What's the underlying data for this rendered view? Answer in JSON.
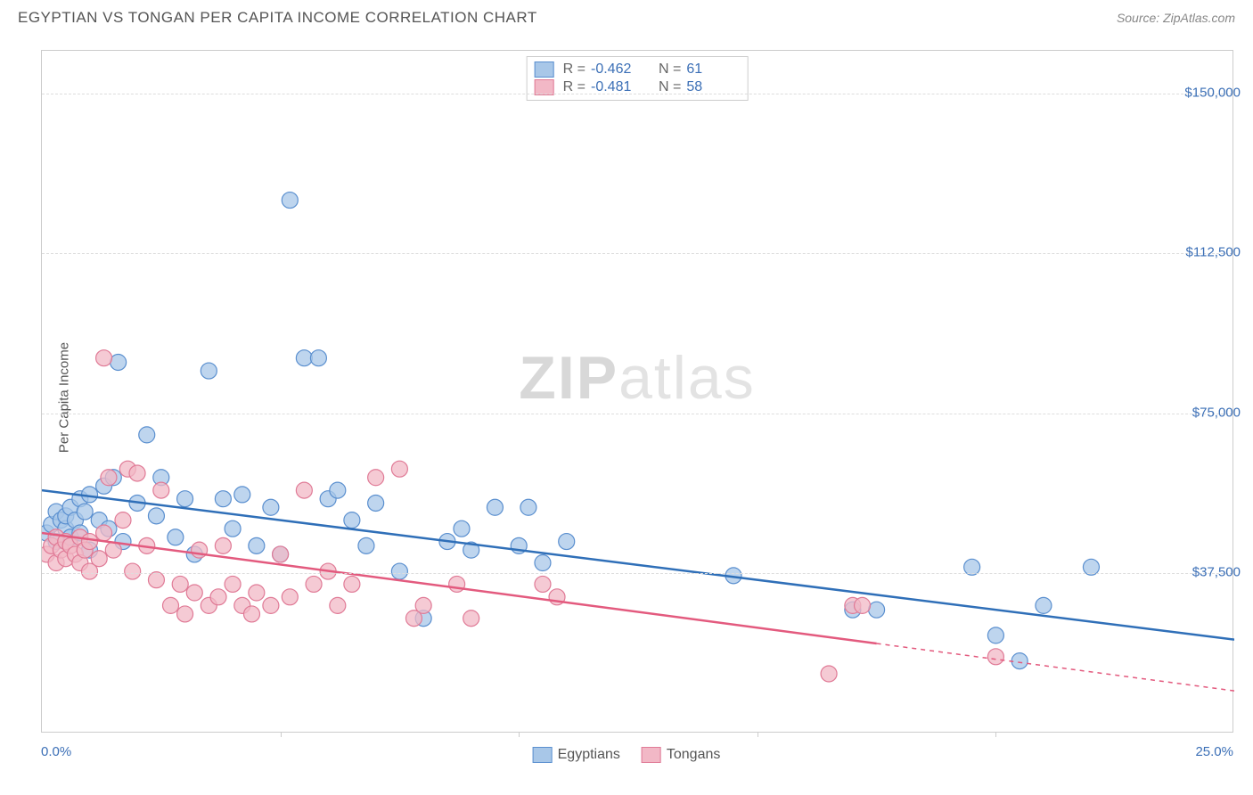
{
  "header": {
    "title": "EGYPTIAN VS TONGAN PER CAPITA INCOME CORRELATION CHART",
    "source_prefix": "Source: ",
    "source_name": "ZipAtlas.com"
  },
  "chart": {
    "type": "scatter",
    "ylabel": "Per Capita Income",
    "background_color": "#ffffff",
    "border_color": "#cccccc",
    "grid_color": "#dddddd",
    "tick_color": "#3b6fb6",
    "axis_label_color": "#555555",
    "watermark_zip": "ZIP",
    "watermark_atlas": "atlas",
    "xlim": [
      0,
      25
    ],
    "ylim": [
      0,
      160000
    ],
    "yticks": [
      {
        "value": 37500,
        "label": "$37,500"
      },
      {
        "value": 75000,
        "label": "$75,000"
      },
      {
        "value": 112500,
        "label": "$112,500"
      },
      {
        "value": 150000,
        "label": "$150,000"
      }
    ],
    "xtick_positions": [
      0,
      5,
      10,
      15,
      20,
      25
    ],
    "xtick_labels": {
      "left": "0.0%",
      "right": "25.0%"
    },
    "series": [
      {
        "name": "Egyptians",
        "fill_color": "#a8c7e8",
        "stroke_color": "#5a8fcf",
        "line_color": "#2f6fb8",
        "marker_radius": 9,
        "marker_opacity": 0.75,
        "line_width": 2.5,
        "trend": {
          "x1": 0,
          "y1": 57000,
          "x2": 25,
          "y2": 22000,
          "dash_from_x": null
        },
        "stats": {
          "r_label": "R =",
          "r_value": "-0.462",
          "n_label": "N =",
          "n_value": "61"
        },
        "points": [
          [
            0.1,
            47000
          ],
          [
            0.2,
            49000
          ],
          [
            0.3,
            52000
          ],
          [
            0.3,
            45000
          ],
          [
            0.4,
            50000
          ],
          [
            0.5,
            48000
          ],
          [
            0.5,
            51000
          ],
          [
            0.6,
            53000
          ],
          [
            0.6,
            46000
          ],
          [
            0.7,
            50000
          ],
          [
            0.8,
            55000
          ],
          [
            0.8,
            47000
          ],
          [
            0.9,
            52000
          ],
          [
            1.0,
            56000
          ],
          [
            1.0,
            43000
          ],
          [
            1.2,
            50000
          ],
          [
            1.3,
            58000
          ],
          [
            1.4,
            48000
          ],
          [
            1.5,
            60000
          ],
          [
            1.6,
            87000
          ],
          [
            1.7,
            45000
          ],
          [
            2.0,
            54000
          ],
          [
            2.2,
            70000
          ],
          [
            2.4,
            51000
          ],
          [
            2.5,
            60000
          ],
          [
            2.8,
            46000
          ],
          [
            3.0,
            55000
          ],
          [
            3.2,
            42000
          ],
          [
            3.5,
            85000
          ],
          [
            3.8,
            55000
          ],
          [
            4.0,
            48000
          ],
          [
            4.2,
            56000
          ],
          [
            4.5,
            44000
          ],
          [
            4.8,
            53000
          ],
          [
            5.0,
            42000
          ],
          [
            5.2,
            125000
          ],
          [
            5.5,
            88000
          ],
          [
            5.8,
            88000
          ],
          [
            6.0,
            55000
          ],
          [
            6.2,
            57000
          ],
          [
            6.5,
            50000
          ],
          [
            6.8,
            44000
          ],
          [
            7.0,
            54000
          ],
          [
            7.5,
            38000
          ],
          [
            8.0,
            27000
          ],
          [
            8.5,
            45000
          ],
          [
            8.8,
            48000
          ],
          [
            9.0,
            43000
          ],
          [
            9.5,
            53000
          ],
          [
            10.0,
            44000
          ],
          [
            10.2,
            53000
          ],
          [
            10.5,
            40000
          ],
          [
            11.0,
            45000
          ],
          [
            14.5,
            37000
          ],
          [
            17.0,
            29000
          ],
          [
            17.5,
            29000
          ],
          [
            19.5,
            39000
          ],
          [
            20.0,
            23000
          ],
          [
            20.5,
            17000
          ],
          [
            21.0,
            30000
          ],
          [
            22.0,
            39000
          ]
        ]
      },
      {
        "name": "Tongans",
        "fill_color": "#f2b8c6",
        "stroke_color": "#e07a96",
        "line_color": "#e35a7e",
        "marker_radius": 9,
        "marker_opacity": 0.75,
        "line_width": 2.5,
        "trend": {
          "x1": 0,
          "y1": 47000,
          "x2": 25,
          "y2": 10000,
          "dash_from_x": 17.5
        },
        "stats": {
          "r_label": "R =",
          "r_value": "-0.481",
          "n_label": "N =",
          "n_value": "58"
        },
        "points": [
          [
            0.1,
            42000
          ],
          [
            0.2,
            44000
          ],
          [
            0.3,
            46000
          ],
          [
            0.3,
            40000
          ],
          [
            0.4,
            43000
          ],
          [
            0.5,
            45000
          ],
          [
            0.5,
            41000
          ],
          [
            0.6,
            44000
          ],
          [
            0.7,
            42000
          ],
          [
            0.8,
            46000
          ],
          [
            0.8,
            40000
          ],
          [
            0.9,
            43000
          ],
          [
            1.0,
            45000
          ],
          [
            1.0,
            38000
          ],
          [
            1.2,
            41000
          ],
          [
            1.3,
            47000
          ],
          [
            1.3,
            88000
          ],
          [
            1.4,
            60000
          ],
          [
            1.5,
            43000
          ],
          [
            1.7,
            50000
          ],
          [
            1.8,
            62000
          ],
          [
            1.9,
            38000
          ],
          [
            2.0,
            61000
          ],
          [
            2.2,
            44000
          ],
          [
            2.4,
            36000
          ],
          [
            2.5,
            57000
          ],
          [
            2.7,
            30000
          ],
          [
            2.9,
            35000
          ],
          [
            3.0,
            28000
          ],
          [
            3.2,
            33000
          ],
          [
            3.3,
            43000
          ],
          [
            3.5,
            30000
          ],
          [
            3.7,
            32000
          ],
          [
            3.8,
            44000
          ],
          [
            4.0,
            35000
          ],
          [
            4.2,
            30000
          ],
          [
            4.4,
            28000
          ],
          [
            4.5,
            33000
          ],
          [
            4.8,
            30000
          ],
          [
            5.0,
            42000
          ],
          [
            5.2,
            32000
          ],
          [
            5.5,
            57000
          ],
          [
            5.7,
            35000
          ],
          [
            6.0,
            38000
          ],
          [
            6.2,
            30000
          ],
          [
            6.5,
            35000
          ],
          [
            7.0,
            60000
          ],
          [
            7.5,
            62000
          ],
          [
            7.8,
            27000
          ],
          [
            8.0,
            30000
          ],
          [
            8.7,
            35000
          ],
          [
            9.0,
            27000
          ],
          [
            10.5,
            35000
          ],
          [
            10.8,
            32000
          ],
          [
            16.5,
            14000
          ],
          [
            17.0,
            30000
          ],
          [
            17.2,
            30000
          ],
          [
            20.0,
            18000
          ]
        ]
      }
    ]
  }
}
